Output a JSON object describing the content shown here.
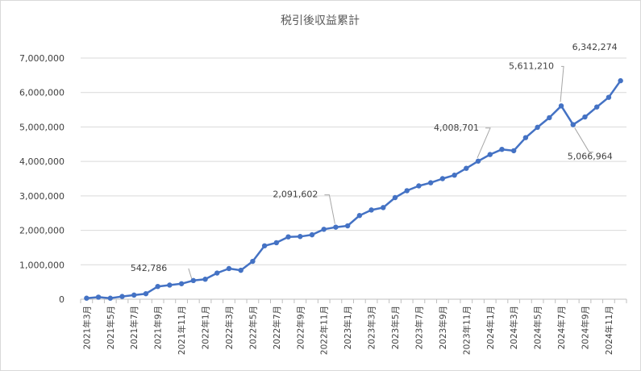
{
  "chart_data": {
    "type": "line",
    "title": "税引後収益累計",
    "xlabel": "",
    "ylabel": "",
    "ylim": [
      0,
      7000000
    ],
    "yticks": [
      0,
      1000000,
      2000000,
      3000000,
      4000000,
      5000000,
      6000000,
      7000000
    ],
    "ytick_labels": [
      "0",
      "1,000,000",
      "2,000,000",
      "3,000,000",
      "4,000,000",
      "5,000,000",
      "6,000,000",
      "7,000,000"
    ],
    "grid": true,
    "legend": "none",
    "color": "#4472C4",
    "x": [
      "2021年3月",
      "2021年4月",
      "2021年5月",
      "2021年6月",
      "2021年7月",
      "2021年8月",
      "2021年9月",
      "2021年10月",
      "2021年11月",
      "2021年12月",
      "2022年1月",
      "2022年2月",
      "2022年3月",
      "2022年4月",
      "2022年5月",
      "2022年6月",
      "2022年7月",
      "2022年8月",
      "2022年9月",
      "2022年10月",
      "2022年11月",
      "2022年12月",
      "2023年1月",
      "2023年2月",
      "2023年3月",
      "2023年4月",
      "2023年5月",
      "2023年6月",
      "2023年7月",
      "2023年8月",
      "2023年9月",
      "2023年10月",
      "2023年11月",
      "2023年12月",
      "2024年1月",
      "2024年2月",
      "2024年3月",
      "2024年4月",
      "2024年5月",
      "2024年6月",
      "2024年7月",
      "2024年8月",
      "2024年9月",
      "2024年10月",
      "2024年11月",
      "2024年12月"
    ],
    "x_tick_labels": [
      "2021年3月",
      "2021年5月",
      "2021年7月",
      "2021年9月",
      "2021年11月",
      "2022年1月",
      "2022年3月",
      "2022年5月",
      "2022年7月",
      "2022年9月",
      "2022年11月",
      "2023年1月",
      "2023年3月",
      "2023年5月",
      "2023年7月",
      "2023年9月",
      "2023年11月",
      "2024年1月",
      "2024年3月",
      "2024年5月",
      "2024年7月",
      "2024年9月",
      "2024年11月"
    ],
    "series": [
      {
        "name": "",
        "values": [
          30000,
          60000,
          30000,
          80000,
          120000,
          160000,
          370000,
          410000,
          450000,
          542786,
          580000,
          760000,
          890000,
          840000,
          1100000,
          1550000,
          1640000,
          1810000,
          1820000,
          1870000,
          2030000,
          2091602,
          2130000,
          2430000,
          2590000,
          2660000,
          2950000,
          3150000,
          3290000,
          3380000,
          3500000,
          3600000,
          3800000,
          4008701,
          4200000,
          4350000,
          4310000,
          4690000,
          4990000,
          5270000,
          5611210,
          5066964,
          5290000,
          5580000,
          5860000,
          6342274
        ]
      }
    ],
    "annotations": [
      {
        "index": 9,
        "text": "542,786"
      },
      {
        "index": 21,
        "text": "2,091,602"
      },
      {
        "index": 33,
        "text": "4,008,701"
      },
      {
        "index": 40,
        "text": "5,611,210"
      },
      {
        "index": 41,
        "text": "5,066,964"
      },
      {
        "index": 45,
        "text": "6,342,274"
      }
    ]
  }
}
